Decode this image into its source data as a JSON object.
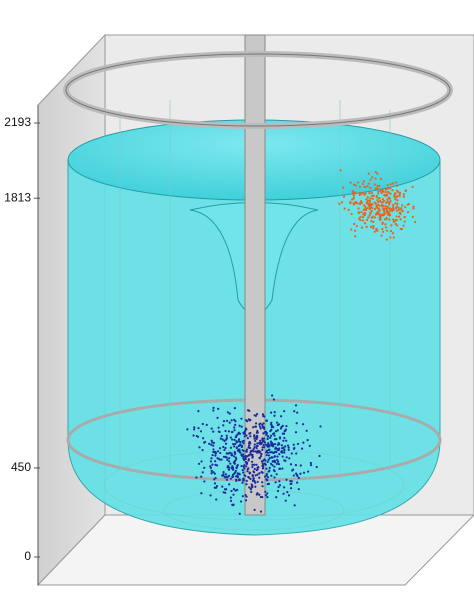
{
  "chart_data": {
    "type": "scatter3d",
    "ylim": [
      0,
      2193
    ],
    "yticks": [
      0,
      450,
      1813,
      2193
    ]
  }
}
